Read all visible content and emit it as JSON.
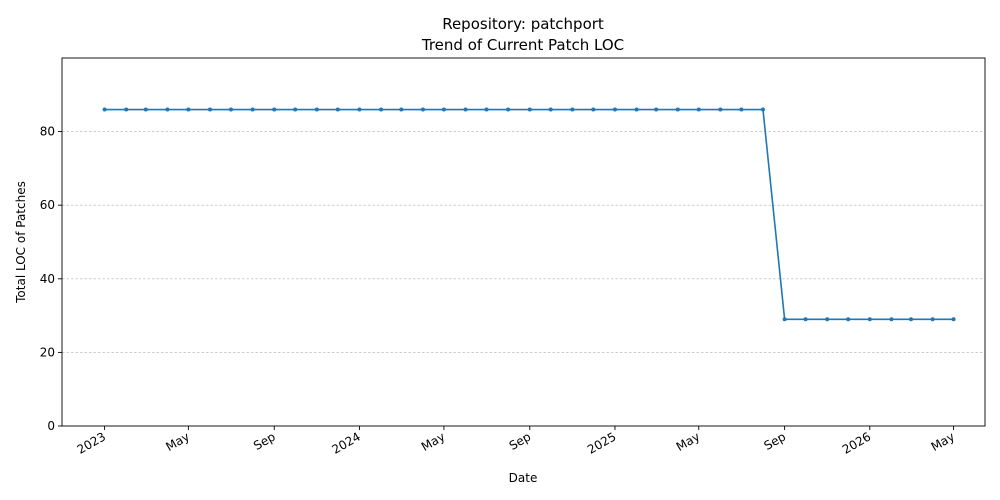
{
  "chart_data": {
    "type": "line",
    "title": "Repository: patchport",
    "subtitle": "Trend of Current Patch LOC",
    "xlabel": "Date",
    "ylabel": "Total LOC of Patches",
    "ylim": [
      0,
      100
    ],
    "xlim": [
      "2022-11-01",
      "2026-06-15"
    ],
    "yticks": [
      0,
      20,
      40,
      60,
      80
    ],
    "xticks": [
      {
        "date": "2023-01-01",
        "label": "2023"
      },
      {
        "date": "2023-05-01",
        "label": "May"
      },
      {
        "date": "2023-09-01",
        "label": "Sep"
      },
      {
        "date": "2024-01-01",
        "label": "2024"
      },
      {
        "date": "2024-05-01",
        "label": "May"
      },
      {
        "date": "2024-09-01",
        "label": "Sep"
      },
      {
        "date": "2025-01-01",
        "label": "2025"
      },
      {
        "date": "2025-05-01",
        "label": "May"
      },
      {
        "date": "2025-09-01",
        "label": "Sep"
      },
      {
        "date": "2026-01-01",
        "label": "2026"
      },
      {
        "date": "2026-05-01",
        "label": "May"
      }
    ],
    "grid": "horizontal dashed",
    "series": [
      {
        "color": "#1f77b4",
        "points": [
          {
            "x": "2023-01-01",
            "y": 86
          },
          {
            "x": "2023-02-01",
            "y": 86
          },
          {
            "x": "2023-03-01",
            "y": 86
          },
          {
            "x": "2023-04-01",
            "y": 86
          },
          {
            "x": "2023-05-01",
            "y": 86
          },
          {
            "x": "2023-06-01",
            "y": 86
          },
          {
            "x": "2023-07-01",
            "y": 86
          },
          {
            "x": "2023-08-01",
            "y": 86
          },
          {
            "x": "2023-09-01",
            "y": 86
          },
          {
            "x": "2023-10-01",
            "y": 86
          },
          {
            "x": "2023-11-01",
            "y": 86
          },
          {
            "x": "2023-12-01",
            "y": 86
          },
          {
            "x": "2024-01-01",
            "y": 86
          },
          {
            "x": "2024-02-01",
            "y": 86
          },
          {
            "x": "2024-03-01",
            "y": 86
          },
          {
            "x": "2024-04-01",
            "y": 86
          },
          {
            "x": "2024-05-01",
            "y": 86
          },
          {
            "x": "2024-06-01",
            "y": 86
          },
          {
            "x": "2024-07-01",
            "y": 86
          },
          {
            "x": "2024-08-01",
            "y": 86
          },
          {
            "x": "2024-09-01",
            "y": 86
          },
          {
            "x": "2024-10-01",
            "y": 86
          },
          {
            "x": "2024-11-01",
            "y": 86
          },
          {
            "x": "2024-12-01",
            "y": 86
          },
          {
            "x": "2025-01-01",
            "y": 86
          },
          {
            "x": "2025-02-01",
            "y": 86
          },
          {
            "x": "2025-03-01",
            "y": 86
          },
          {
            "x": "2025-04-01",
            "y": 86
          },
          {
            "x": "2025-05-01",
            "y": 86
          },
          {
            "x": "2025-06-01",
            "y": 86
          },
          {
            "x": "2025-07-01",
            "y": 86
          },
          {
            "x": "2025-08-01",
            "y": 86
          },
          {
            "x": "2025-09-01",
            "y": 29
          },
          {
            "x": "2025-10-01",
            "y": 29
          },
          {
            "x": "2025-11-01",
            "y": 29
          },
          {
            "x": "2025-12-01",
            "y": 29
          },
          {
            "x": "2026-01-01",
            "y": 29
          },
          {
            "x": "2026-02-01",
            "y": 29
          },
          {
            "x": "2026-03-01",
            "y": 29
          },
          {
            "x": "2026-04-01",
            "y": 29
          },
          {
            "x": "2026-05-01",
            "y": 29
          }
        ]
      }
    ]
  }
}
